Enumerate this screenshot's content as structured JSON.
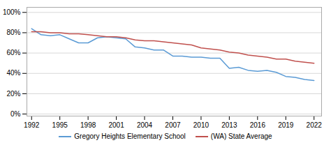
{
  "chart_data": {
    "type": "line",
    "x": [
      1992,
      1993,
      1994,
      1995,
      1996,
      1997,
      1998,
      1999,
      2000,
      2001,
      2002,
      2003,
      2004,
      2005,
      2006,
      2007,
      2008,
      2009,
      2010,
      2011,
      2012,
      2013,
      2014,
      2015,
      2016,
      2017,
      2018,
      2019,
      2020,
      2021,
      2022
    ],
    "series": [
      {
        "name": "Gregory Heights Elementary School",
        "color": "#5b9bd5",
        "values": [
          0.84,
          0.78,
          0.77,
          0.78,
          0.74,
          0.7,
          0.7,
          0.75,
          0.76,
          0.75,
          0.74,
          0.66,
          0.65,
          0.63,
          0.63,
          0.57,
          0.57,
          0.56,
          0.56,
          0.55,
          0.55,
          0.45,
          0.46,
          0.43,
          0.42,
          0.43,
          0.41,
          0.37,
          0.36,
          0.34,
          0.33
        ]
      },
      {
        "name": "(WA) State Average",
        "color": "#c0504d",
        "values": [
          0.81,
          0.81,
          0.8,
          0.8,
          0.79,
          0.79,
          0.78,
          0.77,
          0.76,
          0.76,
          0.75,
          0.73,
          0.72,
          0.72,
          0.71,
          0.7,
          0.69,
          0.68,
          0.65,
          0.64,
          0.63,
          0.61,
          0.6,
          0.58,
          0.57,
          0.56,
          0.54,
          0.54,
          0.52,
          0.51,
          0.5
        ]
      }
    ],
    "xlim": [
      1991.5,
      2022.8
    ],
    "xticks": [
      1992,
      1995,
      1998,
      2001,
      2004,
      2007,
      2010,
      2013,
      2016,
      2019,
      2022
    ],
    "ylim": [
      -0.02,
      1.05
    ],
    "yticks": [
      {
        "value": 0.0,
        "label": "0%"
      },
      {
        "value": 0.2,
        "label": "20%"
      },
      {
        "value": 0.4,
        "label": "40%"
      },
      {
        "value": 0.6,
        "label": "60%"
      },
      {
        "value": 0.8,
        "label": "80%"
      },
      {
        "value": 1.0,
        "label": "100%"
      }
    ],
    "grid": true,
    "legend": "bottom"
  }
}
